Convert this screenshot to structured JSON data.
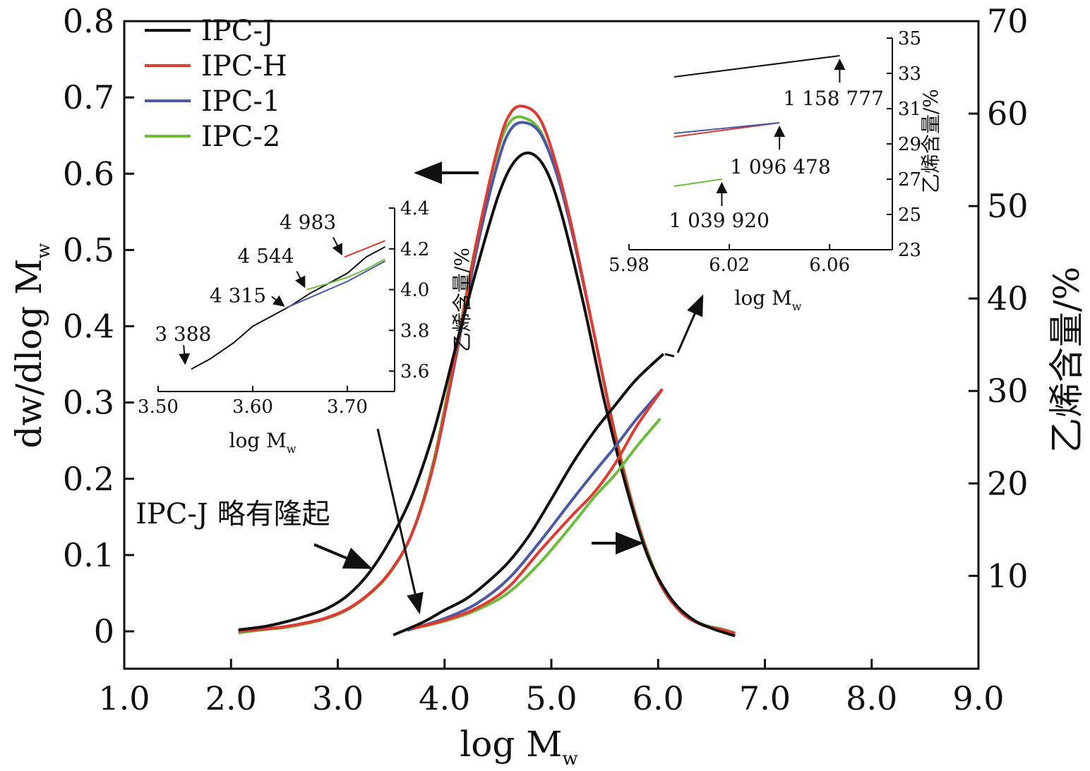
{
  "chart_data": {
    "type": "line",
    "xlabel": "log M",
    "xlabel_sub": "w",
    "ylabel_left": "dw/dlog M",
    "ylabel_left_sub": "w",
    "ylabel_right": "乙烯含量/%",
    "xlim": [
      1.0,
      9.0
    ],
    "ylim_left": [
      -0.05,
      0.8
    ],
    "ylim_right": [
      0,
      70
    ],
    "x_ticks": [
      "1.0",
      "2.0",
      "3.0",
      "4.0",
      "5.0",
      "6.0",
      "7.0",
      "8.0",
      "9.0"
    ],
    "x_tick_values": [
      1,
      2,
      3,
      4,
      5,
      6,
      7,
      8,
      9
    ],
    "y_left_ticks": [
      "0",
      "0.1",
      "0.2",
      "0.3",
      "0.4",
      "0.5",
      "0.6",
      "0.7",
      "0.8"
    ],
    "y_left_tick_values": [
      0,
      0.1,
      0.2,
      0.3,
      0.4,
      0.5,
      0.6,
      0.7,
      0.8
    ],
    "y_right_ticks": [
      "10",
      "20",
      "30",
      "40",
      "50",
      "60",
      "70"
    ],
    "y_right_tick_values": [
      10,
      20,
      30,
      40,
      50,
      60,
      70
    ],
    "legend_position": "top-left",
    "series": [
      {
        "name": "IPC-J",
        "color": "#111111",
        "mwd": {
          "x": [
            2.07,
            2.3,
            2.5,
            2.7,
            2.9,
            3.1,
            3.3,
            3.5,
            3.7,
            3.9,
            4.1,
            4.3,
            4.5,
            4.65,
            4.8,
            4.95,
            5.1,
            5.3,
            5.5,
            5.7,
            5.9,
            6.1,
            6.3,
            6.5,
            6.72
          ],
          "y": [
            0.002,
            0.006,
            0.012,
            0.02,
            0.03,
            0.048,
            0.078,
            0.122,
            0.18,
            0.262,
            0.37,
            0.475,
            0.57,
            0.615,
            0.627,
            0.605,
            0.545,
            0.43,
            0.3,
            0.19,
            0.1,
            0.047,
            0.018,
            0.004,
            -0.006
          ]
        },
        "ethylene": {
          "x": [
            3.52,
            3.8,
            4.0,
            4.2,
            4.4,
            4.6,
            4.8,
            5.0,
            5.2,
            5.4,
            5.6,
            5.8,
            6.05
          ],
          "y": [
            3.6,
            5.0,
            6.3,
            7.5,
            9.3,
            11.5,
            14.5,
            18.3,
            22.2,
            25.6,
            28.5,
            31.3,
            34.0
          ]
        }
      },
      {
        "name": "IPC-H",
        "color": "#e03a33",
        "mwd": {
          "x": [
            2.07,
            2.3,
            2.5,
            2.7,
            2.9,
            3.1,
            3.3,
            3.5,
            3.7,
            3.9,
            4.1,
            4.3,
            4.5,
            4.62,
            4.75,
            4.9,
            5.05,
            5.2,
            5.4,
            5.6,
            5.8,
            6.0,
            6.2,
            6.4,
            6.6,
            6.72
          ],
          "y": [
            0.0,
            0.003,
            0.006,
            0.011,
            0.018,
            0.03,
            0.05,
            0.08,
            0.13,
            0.22,
            0.36,
            0.51,
            0.635,
            0.68,
            0.688,
            0.67,
            0.61,
            0.525,
            0.39,
            0.255,
            0.145,
            0.068,
            0.027,
            0.009,
            0.002,
            -0.003
          ]
        },
        "ethylene": {
          "x": [
            3.7,
            4.0,
            4.3,
            4.6,
            4.9,
            5.2,
            5.4,
            5.6,
            5.8,
            6.04
          ],
          "y": [
            4.3,
            5.2,
            6.5,
            8.8,
            12.8,
            16.6,
            19.0,
            22.2,
            26.2,
            30.2
          ]
        }
      },
      {
        "name": "IPC-1",
        "color": "#4a58a8",
        "mwd": {
          "x": [
            2.07,
            2.3,
            2.5,
            2.7,
            2.9,
            3.1,
            3.3,
            3.5,
            3.7,
            3.9,
            4.1,
            4.3,
            4.5,
            4.62,
            4.75,
            4.9,
            5.05,
            5.2,
            5.4,
            5.6,
            5.8,
            6.0,
            6.2,
            6.4,
            6.6,
            6.72
          ],
          "y": [
            0.0,
            0.003,
            0.006,
            0.011,
            0.018,
            0.03,
            0.05,
            0.08,
            0.13,
            0.22,
            0.355,
            0.5,
            0.615,
            0.658,
            0.667,
            0.652,
            0.6,
            0.52,
            0.39,
            0.255,
            0.145,
            0.068,
            0.027,
            0.009,
            0.002,
            -0.003
          ]
        },
        "ethylene": {
          "x": [
            3.65,
            4.0,
            4.3,
            4.6,
            4.9,
            5.2,
            5.4,
            5.6,
            5.8,
            6.04
          ],
          "y": [
            4.1,
            5.4,
            7.0,
            9.7,
            13.8,
            18.3,
            21.2,
            24.0,
            27.0,
            30.2
          ]
        }
      },
      {
        "name": "IPC-2",
        "color": "#6cbd3c",
        "mwd": {
          "x": [
            2.07,
            2.3,
            2.5,
            2.7,
            2.9,
            3.1,
            3.3,
            3.5,
            3.7,
            3.9,
            4.1,
            4.3,
            4.5,
            4.62,
            4.75,
            4.9,
            5.05,
            5.2,
            5.4,
            5.6,
            5.8,
            6.0,
            6.2,
            6.4,
            6.6,
            6.72
          ],
          "y": [
            -0.002,
            0.002,
            0.005,
            0.01,
            0.017,
            0.029,
            0.049,
            0.079,
            0.13,
            0.225,
            0.365,
            0.512,
            0.63,
            0.669,
            0.673,
            0.655,
            0.6,
            0.52,
            0.39,
            0.258,
            0.148,
            0.07,
            0.028,
            0.01,
            0.003,
            -0.002
          ]
        },
        "ethylene": {
          "x": [
            3.7,
            4.0,
            4.3,
            4.6,
            4.9,
            5.2,
            5.4,
            5.6,
            5.8,
            6.02
          ],
          "y": [
            4.3,
            5.1,
            6.3,
            8.2,
            11.5,
            15.6,
            18.5,
            21.0,
            24.0,
            27.0
          ]
        }
      }
    ],
    "inset_low": {
      "xlabel": "log M",
      "xlabel_sub": "w",
      "ylabel": "乙烯含量/%",
      "xlim": [
        3.5,
        3.75
      ],
      "ylim": [
        3.5,
        4.4
      ],
      "x_ticks": [
        "3.50",
        "3.60",
        "3.70"
      ],
      "x_tick_values": [
        3.5,
        3.6,
        3.7
      ],
      "y_ticks": [
        "3.6",
        "3.8",
        "4.0",
        "4.2",
        "4.4"
      ],
      "y_tick_values": [
        3.6,
        3.8,
        4.0,
        4.2,
        4.4
      ],
      "series": [
        {
          "name": "IPC-J",
          "color": "#111111",
          "x": [
            3.535,
            3.555,
            3.58,
            3.6,
            3.62,
            3.64,
            3.66,
            3.68,
            3.7,
            3.72,
            3.74
          ],
          "y": [
            3.61,
            3.66,
            3.74,
            3.82,
            3.87,
            3.92,
            3.98,
            4.03,
            4.08,
            4.16,
            4.21
          ]
        },
        {
          "name": "IPC-H",
          "color": "#e03a33",
          "x": [
            3.697,
            3.74
          ],
          "y": [
            4.16,
            4.24
          ]
        },
        {
          "name": "IPC-1",
          "color": "#4a58a8",
          "x": [
            3.635,
            3.66,
            3.68,
            3.7,
            3.72,
            3.74
          ],
          "y": [
            3.91,
            3.96,
            4.0,
            4.04,
            4.09,
            4.14
          ]
        },
        {
          "name": "IPC-2",
          "color": "#6cbd3c",
          "x": [
            3.657,
            3.68,
            3.7,
            3.72,
            3.74
          ],
          "y": [
            4.0,
            4.03,
            4.06,
            4.1,
            4.15
          ]
        }
      ],
      "annotations": [
        {
          "label": "3 388",
          "x": 3.53,
          "y": 3.61
        },
        {
          "label": "4 315",
          "x": 3.635,
          "y": 3.91
        },
        {
          "label": "4 544",
          "x": 3.657,
          "y": 4.0
        },
        {
          "label": "4 983",
          "x": 3.697,
          "y": 4.16
        }
      ]
    },
    "inset_high": {
      "xlabel": "log M",
      "xlabel_sub": "w",
      "ylabel": "乙烯含量/%",
      "xlim": [
        5.98,
        6.085
      ],
      "ylim": [
        23,
        35
      ],
      "x_ticks": [
        "5.98",
        "6.02",
        "6.06"
      ],
      "x_tick_values": [
        5.98,
        6.02,
        6.06
      ],
      "y_ticks": [
        "23",
        "25",
        "27",
        "29",
        "31",
        "33",
        "35"
      ],
      "y_tick_values": [
        23,
        25,
        27,
        29,
        31,
        33,
        35
      ],
      "series": [
        {
          "name": "IPC-J",
          "color": "#111111",
          "x": [
            5.998,
            6.064
          ],
          "y": [
            32.8,
            34.0
          ]
        },
        {
          "name": "IPC-H",
          "color": "#e03a33",
          "x": [
            5.998,
            6.04
          ],
          "y": [
            29.4,
            30.2
          ]
        },
        {
          "name": "IPC-1",
          "color": "#4a58a8",
          "x": [
            5.998,
            6.04
          ],
          "y": [
            29.6,
            30.2
          ]
        },
        {
          "name": "IPC-2",
          "color": "#6cbd3c",
          "x": [
            5.998,
            6.017
          ],
          "y": [
            26.6,
            27.0
          ]
        }
      ],
      "annotations": [
        {
          "label": "1 158 777",
          "x": 6.064,
          "y": 34.0
        },
        {
          "label": "1 096 478",
          "x": 6.04,
          "y": 30.2
        },
        {
          "label": "1 039 920",
          "x": 6.017,
          "y": 27.0
        }
      ]
    },
    "note": "IPC-J 略有隆起"
  }
}
